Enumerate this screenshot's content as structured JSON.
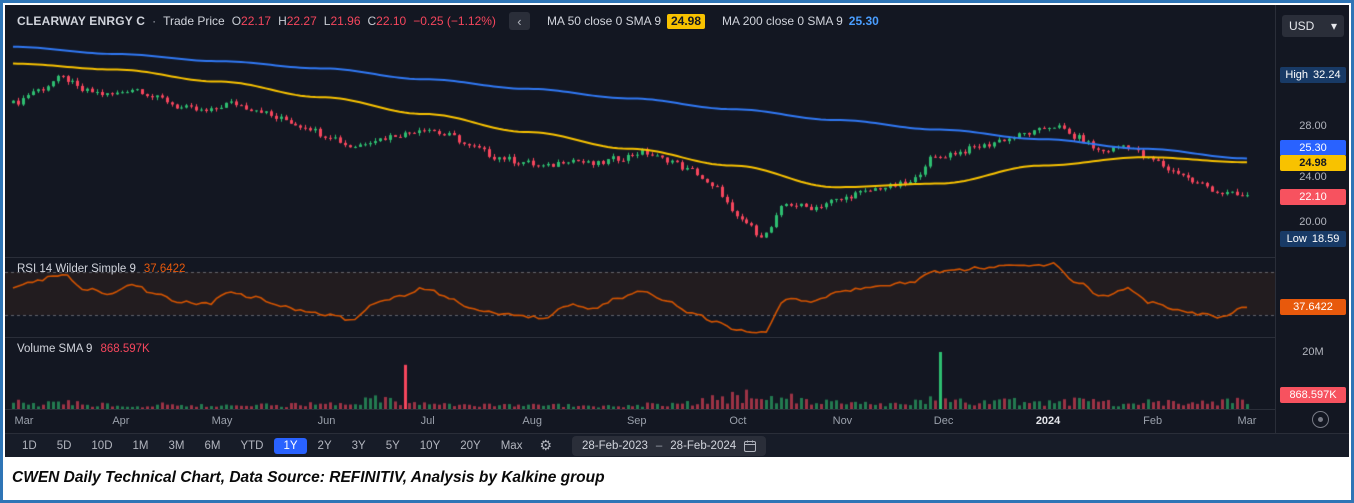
{
  "header": {
    "symbol": "CLEARWAY ENRGY C",
    "separator": "·",
    "series_type": "Trade Price",
    "open_label": "O",
    "open": "22.17",
    "high_label": "H",
    "high": "22.27",
    "low_label": "L",
    "low": "21.96",
    "close_label": "C",
    "close": "22.10",
    "change": "−0.25 (−1.12%)",
    "collapse_glyph": "‹",
    "ma50_label": "MA 50 close 0 SMA 9",
    "ma50_value": "24.98",
    "ma200_label": "MA 200 close 0 SMA 9",
    "ma200_value": "25.30",
    "currency": "USD"
  },
  "icons": {
    "caret_down_glyph": "▾",
    "gear_glyph": "⚙"
  },
  "price_scale": {
    "high_label": "High",
    "high_value": "32.24",
    "low_label": "Low",
    "low_value": "18.59",
    "tick_28": "28.00",
    "tick_24": "24.00",
    "tick_20": "20.00",
    "ma200_badge": "25.30",
    "ma50_badge": "24.98",
    "close_badge": "22.10"
  },
  "rsi_panel": {
    "legend": "RSI 14 Wilder Simple 9",
    "value": "37.6422"
  },
  "volume_panel": {
    "legend": "Volume SMA 9",
    "value": "868.597K",
    "axis_tick": "20M"
  },
  "toolbar": {
    "ranges": [
      "1D",
      "5D",
      "10D",
      "1M",
      "3M",
      "6M",
      "YTD",
      "1Y",
      "2Y",
      "3Y",
      "5Y",
      "10Y",
      "20Y",
      "Max"
    ],
    "selected": "1Y",
    "date_start": "28-Feb-2023",
    "date_separator": "–",
    "date_end": "28-Feb-2024"
  },
  "caption": "CWEN Daily Technical Chart, Data Source: REFINITIV, Analysis by Kalkine group",
  "colors": {
    "up": "#2ebd70",
    "down": "#f6465d",
    "ma50": "#f8c200",
    "ma200": "#3179f5",
    "rsi": "#d35400",
    "badge_navy": "#183a66",
    "badge_blue": "#2962ff",
    "badge_red": "#f7525f",
    "badge_yellow": "#f8c200",
    "badge_orange": "#e8590c",
    "accent": "#2962ff",
    "frame_border": "#2e75b6",
    "background": "#131722"
  },
  "chart_data": {
    "type": "candlestick",
    "title": "CWEN Daily Technical Chart",
    "x_range": [
      "28-Feb-2023",
      "28-Feb-2024"
    ],
    "months": [
      "Mar",
      "Apr",
      "May",
      "Jun",
      "Jul",
      "Aug",
      "Sep",
      "Oct",
      "Nov",
      "Dec",
      "2024",
      "Feb",
      "Mar"
    ],
    "price_ylim": [
      17.5,
      35.5
    ],
    "price_ticks": [
      28.0,
      24.0,
      20.0
    ],
    "period_high": 32.24,
    "period_low": 18.59,
    "last": {
      "open": 22.17,
      "high": 22.27,
      "low": 21.96,
      "close": 22.1,
      "change": -0.25,
      "change_pct": -1.12
    },
    "weekly_close_path": [
      29.9,
      31.0,
      32.0,
      30.9,
      30.6,
      31.1,
      30.3,
      29.5,
      29.2,
      29.9,
      29.4,
      28.6,
      28.0,
      27.2,
      26.3,
      26.9,
      27.3,
      27.8,
      27.2,
      26.2,
      25.4,
      25.0,
      24.6,
      25.2,
      24.8,
      25.3,
      25.8,
      25.2,
      24.3,
      22.8,
      20.2,
      18.9,
      21.5,
      21.2,
      21.8,
      22.4,
      22.9,
      23.2,
      25.3,
      25.8,
      26.3,
      26.9,
      27.4,
      28.0,
      27.0,
      25.9,
      26.4,
      25.2,
      24.2,
      23.2,
      22.4,
      22.1
    ],
    "ma50_monthly": [
      33.2,
      32.7,
      31.7,
      30.4,
      29.0,
      27.5,
      26.1,
      24.7,
      22.9,
      23.2,
      24.7,
      25.4,
      24.98
    ],
    "ma200_monthly": [
      34.6,
      34.0,
      33.4,
      32.8,
      31.9,
      31.1,
      30.3,
      29.4,
      28.5,
      27.7,
      26.9,
      26.1,
      25.3
    ],
    "ma50_last": 24.98,
    "ma200_last": 25.3,
    "rsi": {
      "period": 14,
      "smoothing": "Wilder Simple 9",
      "upper_band": 70,
      "lower_band": 30,
      "last": 37.6422,
      "weekly_path": [
        55,
        62,
        68,
        54,
        50,
        58,
        48,
        42,
        40,
        52,
        46,
        38,
        34,
        30,
        26,
        42,
        48,
        55,
        46,
        36,
        31,
        29,
        27,
        40,
        36,
        45,
        52,
        42,
        33,
        24,
        16,
        14,
        46,
        42,
        50,
        54,
        57,
        60,
        70,
        72,
        74,
        76,
        75,
        78,
        60,
        48,
        55,
        42,
        36,
        31,
        28,
        37.6
      ]
    },
    "volume": {
      "sma_period": 9,
      "sma_last_k": 868.597,
      "axis_max_m": 20,
      "weekly_avg_m": [
        2.2,
        1.8,
        2.5,
        1.6,
        1.4,
        1.2,
        1.5,
        1.3,
        1.2,
        1.0,
        1.4,
        1.2,
        1.8,
        2.0,
        2.6,
        4.0,
        2.2,
        1.6,
        1.4,
        1.2,
        1.5,
        1.8,
        1.4,
        1.2,
        1.0,
        1.3,
        1.6,
        1.4,
        2.0,
        3.2,
        4.5,
        5.2,
        3.8,
        2.4,
        2.0,
        1.8,
        1.6,
        2.2,
        3.5,
        2.8,
        2.2,
        2.6,
        2.4,
        2.0,
        2.8,
        2.2,
        1.8,
        2.4,
        2.6,
        2.2,
        2.8,
        2.4
      ],
      "spikes": [
        {
          "pos": 0.318,
          "millions": 15.5,
          "direction": "down"
        },
        {
          "pos": 0.752,
          "millions": 20.0,
          "direction": "up"
        }
      ]
    }
  }
}
